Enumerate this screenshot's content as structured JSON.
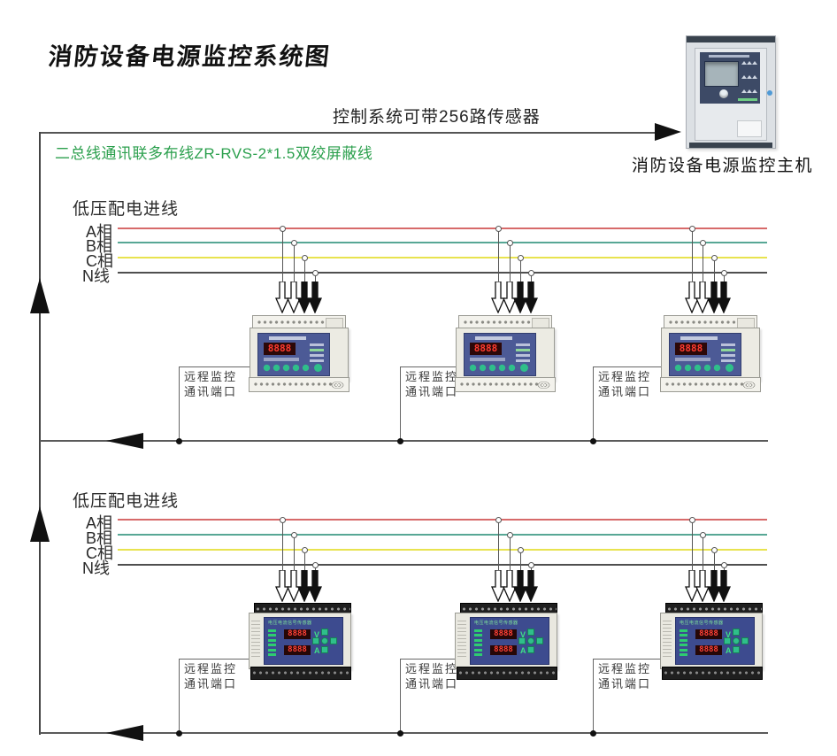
{
  "title": "消防设备电源监控系统图",
  "header": {
    "sensor_capacity_label": "控制系统可带256路传感器",
    "wiring_label": "二总线通讯联多布线ZR-RVS-2*1.5双绞屏蔽线",
    "host_label": "消防设备电源监控主机"
  },
  "port_label": {
    "line1": "远程监控",
    "line2": "通讯端口"
  },
  "devices": {
    "display_digits": "8888",
    "meter_title": "电压电流信号传感器",
    "volt_label": "V",
    "amp_label": "A"
  },
  "colors": {
    "wiring_label": "#2ca04e",
    "bus": "#5a5a5a",
    "arrow": "#111111"
  },
  "sections": [
    {
      "feeder_label": "低压配电进线",
      "phases": [
        {
          "label": "A相",
          "color": "#d76a6a"
        },
        {
          "label": "B相",
          "color": "#57a795"
        },
        {
          "label": "C相",
          "color": "#e8e34f"
        },
        {
          "label": "N线",
          "color": "#4f4f4f"
        }
      ]
    },
    {
      "feeder_label": "低压配电进线",
      "phases": [
        {
          "label": "A相",
          "color": "#d76a6a"
        },
        {
          "label": "B相",
          "color": "#57a795"
        },
        {
          "label": "C相",
          "color": "#e8e34f"
        },
        {
          "label": "N线",
          "color": "#4f4f4f"
        }
      ]
    }
  ]
}
